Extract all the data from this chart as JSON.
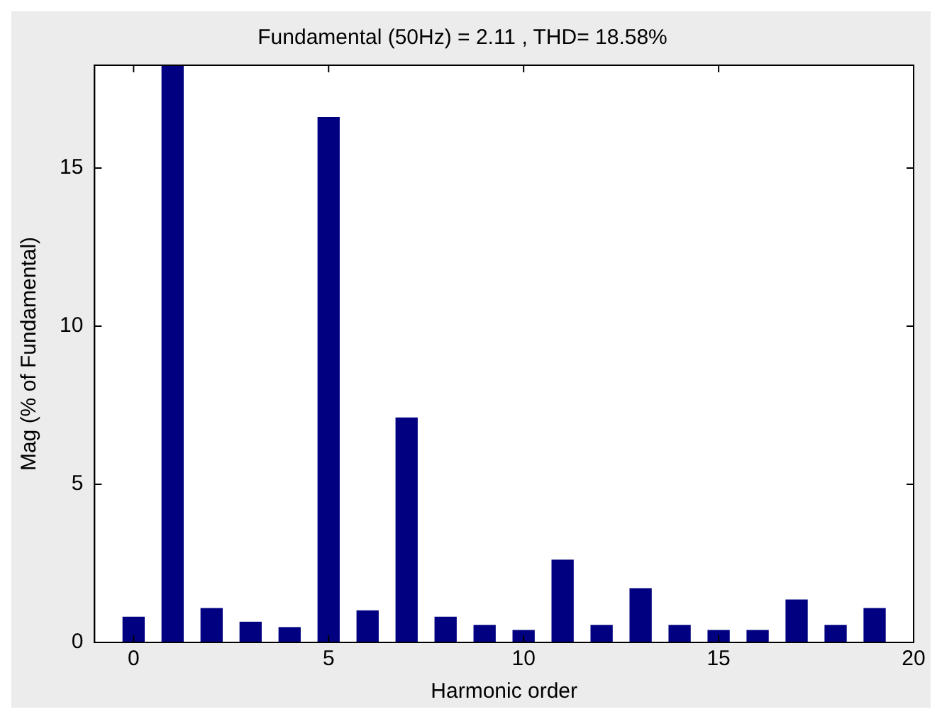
{
  "chart_data": {
    "type": "bar",
    "title": "Fundamental (50Hz) = 2.11 , THD= 18.58%",
    "xlabel": "Harmonic order",
    "ylabel": "Mag (% of Fundamental)",
    "x": [
      0,
      1,
      2,
      3,
      4,
      5,
      6,
      7,
      8,
      9,
      10,
      11,
      12,
      13,
      14,
      15,
      16,
      17,
      18,
      19
    ],
    "values": [
      0.8,
      18.25,
      1.07,
      0.64,
      0.47,
      16.6,
      1.0,
      7.1,
      0.8,
      0.54,
      0.38,
      2.6,
      0.54,
      1.7,
      0.54,
      0.38,
      0.38,
      1.34,
      0.54,
      1.07
    ],
    "color": "#000080",
    "xlim": [
      -1,
      20
    ],
    "xticks": [
      0,
      5,
      10,
      15,
      20
    ],
    "ylim": [
      0,
      18.25
    ],
    "yticks": [
      0,
      5,
      10,
      15
    ],
    "grid": false
  }
}
